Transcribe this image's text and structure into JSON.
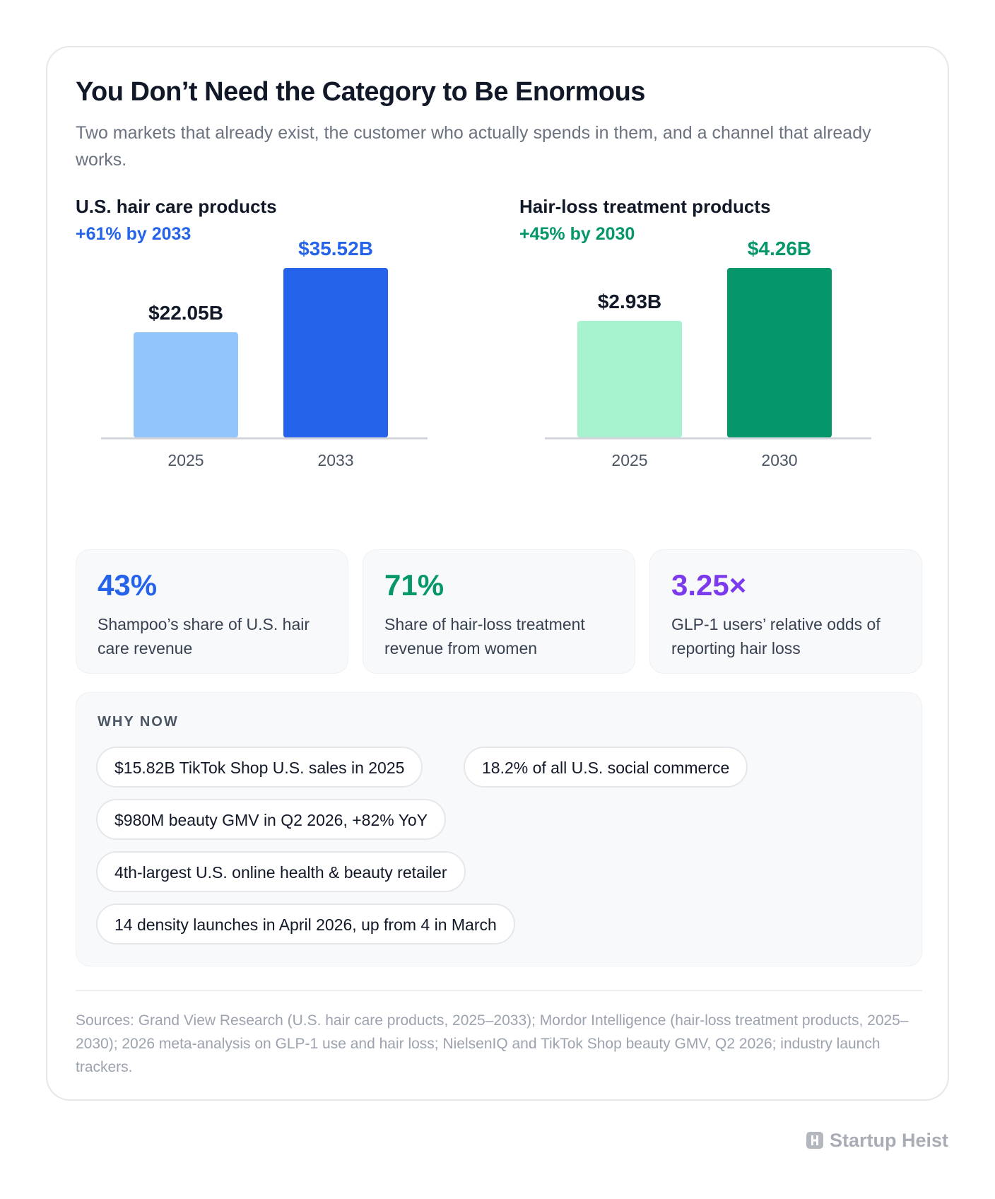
{
  "header": {
    "title": "You Don’t Need the Category to Be Enormous",
    "subtitle": "Two markets that already exist, the customer who actually spends in them, and a channel that already works."
  },
  "chart_data": [
    {
      "type": "bar",
      "title": "U.S. hair care products",
      "subtitle": "+61% by 2033",
      "categories": [
        "2025",
        "2033"
      ],
      "values": [
        22.05,
        35.52
      ],
      "data_labels": [
        "$22.05B",
        "$35.52B"
      ],
      "colors": [
        "#93c5fd",
        "#2563eb"
      ],
      "label_colors": [
        "#111827",
        "#2563eb"
      ],
      "accent": "#2563eb",
      "ylim": [
        0,
        35.52
      ],
      "grid": false
    },
    {
      "type": "bar",
      "title": "Hair-loss treatment products",
      "subtitle": "+45% by 2030",
      "categories": [
        "2025",
        "2030"
      ],
      "values": [
        2.93,
        4.26
      ],
      "data_labels": [
        "$2.93B",
        "$4.26B"
      ],
      "colors": [
        "#a7f3d0",
        "#059669"
      ],
      "label_colors": [
        "#111827",
        "#059669"
      ],
      "accent": "#059669",
      "ylim": [
        0,
        4.26
      ],
      "grid": false
    }
  ],
  "stats": [
    {
      "value": "43%",
      "label": "Shampoo’s share of U.S. hair care revenue",
      "color": "#2563eb"
    },
    {
      "value": "71%",
      "label": "Share of hair-loss treatment revenue from women",
      "color": "#059669"
    },
    {
      "value": "3.25×",
      "label": "GLP-1 users’ relative odds of reporting hair loss",
      "color": "#7c3aed"
    }
  ],
  "why_now": {
    "heading": "WHY NOW",
    "items": [
      "$15.82B TikTok Shop U.S. sales in 2025",
      "18.2% of all U.S. social commerce",
      "$980M beauty GMV in Q2 2026, +82% YoY",
      "4th-largest U.S. online health & beauty retailer",
      "14 density launches in April 2026, up from 4 in March"
    ]
  },
  "sources": "Sources: Grand View Research (U.S. hair care products, 2025–2033); Mordor Intelligence (hair-loss treatment products, 2025–2030); 2026 meta-analysis on GLP-1 use and hair loss; NielsenIQ and TikTok Shop beauty GMV, Q2 2026; industry launch trackers.",
  "brand": {
    "name": "Startup Heist",
    "icon": "startup-heist-logo-icon"
  }
}
